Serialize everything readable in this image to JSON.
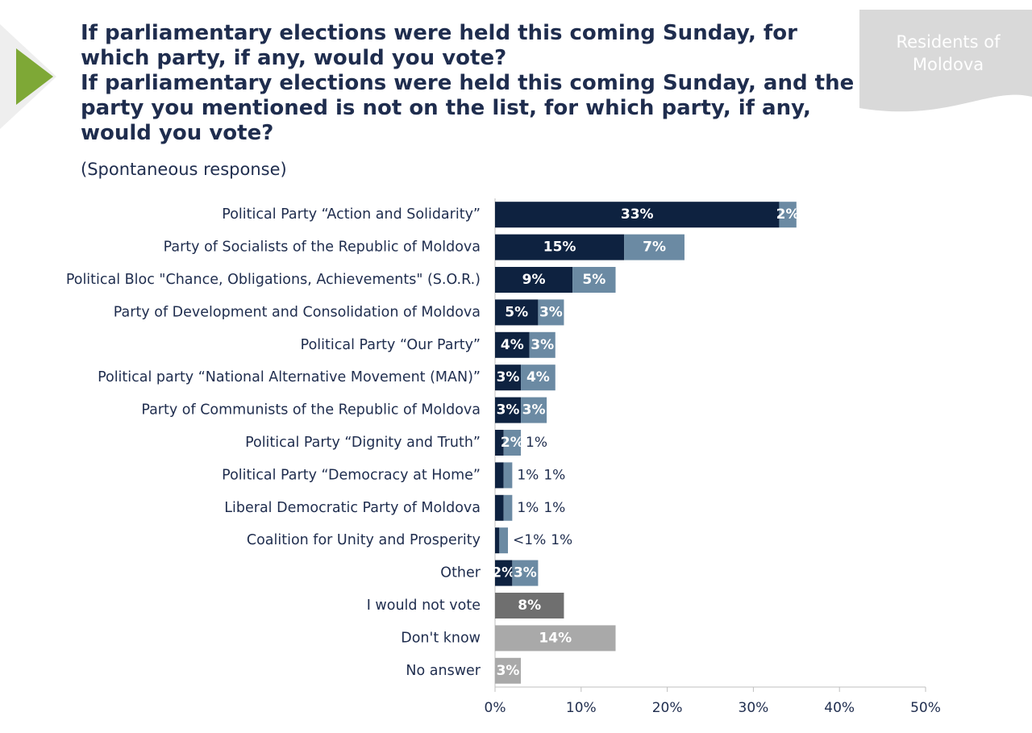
{
  "chart_data": {
    "type": "stacked-hbar",
    "title": [
      "If parliamentary elections were held this coming Sunday, for which party, if any, would you vote?",
      "If parliamentary elections were held this coming Sunday, and the party you mentioned is not on the list, for which party, if any, would you vote?"
    ],
    "subtitle": "(Spontaneous response)",
    "badge": "Residents of Moldova",
    "categories": [
      "Political Party “Action and Solidarity”",
      "Party of Socialists of the Republic of Moldova",
      "Political Bloc \"Chance, Obligations, Achievements\" (S.O.R.)",
      "Party of Development and Consolidation of Moldova",
      "Political Party “Our Party”",
      "Political party “National Alternative Movement (MAN)”",
      "Party of Communists of the Republic of Moldova",
      "Political Party “Dignity and Truth”",
      "Political Party “Democracy at Home”",
      "Liberal Democratic Party of Moldova",
      "Coalition for Unity and Prosperity",
      "Other",
      "I would not vote",
      "Don't know",
      "No answer"
    ],
    "series": [
      {
        "color": "#0e2240",
        "values": [
          33,
          15,
          9,
          5,
          4,
          3,
          3,
          1,
          1,
          1,
          0.5,
          2,
          null,
          null,
          null
        ],
        "value_labels": [
          "33%",
          "15%",
          "9%",
          "5%",
          "4%",
          "3%",
          "3%",
          "1%",
          "1%",
          "1%",
          "<1%",
          "2%",
          null,
          null,
          null
        ]
      },
      {
        "color": "#6b8aa3",
        "values": [
          2,
          7,
          5,
          3,
          3,
          4,
          3,
          2,
          1,
          1,
          1,
          3,
          null,
          null,
          null
        ],
        "value_labels": [
          "2%",
          "7%",
          "5%",
          "3%",
          "3%",
          "4%",
          "3%",
          "2%",
          "1%",
          "1%",
          "1%",
          "3%",
          null,
          null,
          null
        ]
      },
      {
        "color": "#6f6f6f",
        "values": [
          null,
          null,
          null,
          null,
          null,
          null,
          null,
          null,
          null,
          null,
          null,
          null,
          8,
          null,
          null
        ],
        "value_labels": [
          null,
          null,
          null,
          null,
          null,
          null,
          null,
          null,
          null,
          null,
          null,
          null,
          "8%",
          null,
          null
        ]
      },
      {
        "color": "#a9a9a9",
        "values": [
          null,
          null,
          null,
          null,
          null,
          null,
          null,
          null,
          null,
          null,
          null,
          null,
          null,
          14,
          3
        ],
        "value_labels": [
          null,
          null,
          null,
          null,
          null,
          null,
          null,
          null,
          null,
          null,
          null,
          null,
          null,
          "14%",
          "3%"
        ]
      }
    ],
    "xlim": [
      0,
      50
    ],
    "xticks": [
      {
        "value": 0,
        "label": "0%"
      },
      {
        "value": 10,
        "label": "10%"
      },
      {
        "value": 20,
        "label": "20%"
      },
      {
        "value": 30,
        "label": "30%"
      },
      {
        "value": 40,
        "label": "40%"
      },
      {
        "value": 50,
        "label": "50%"
      }
    ]
  }
}
